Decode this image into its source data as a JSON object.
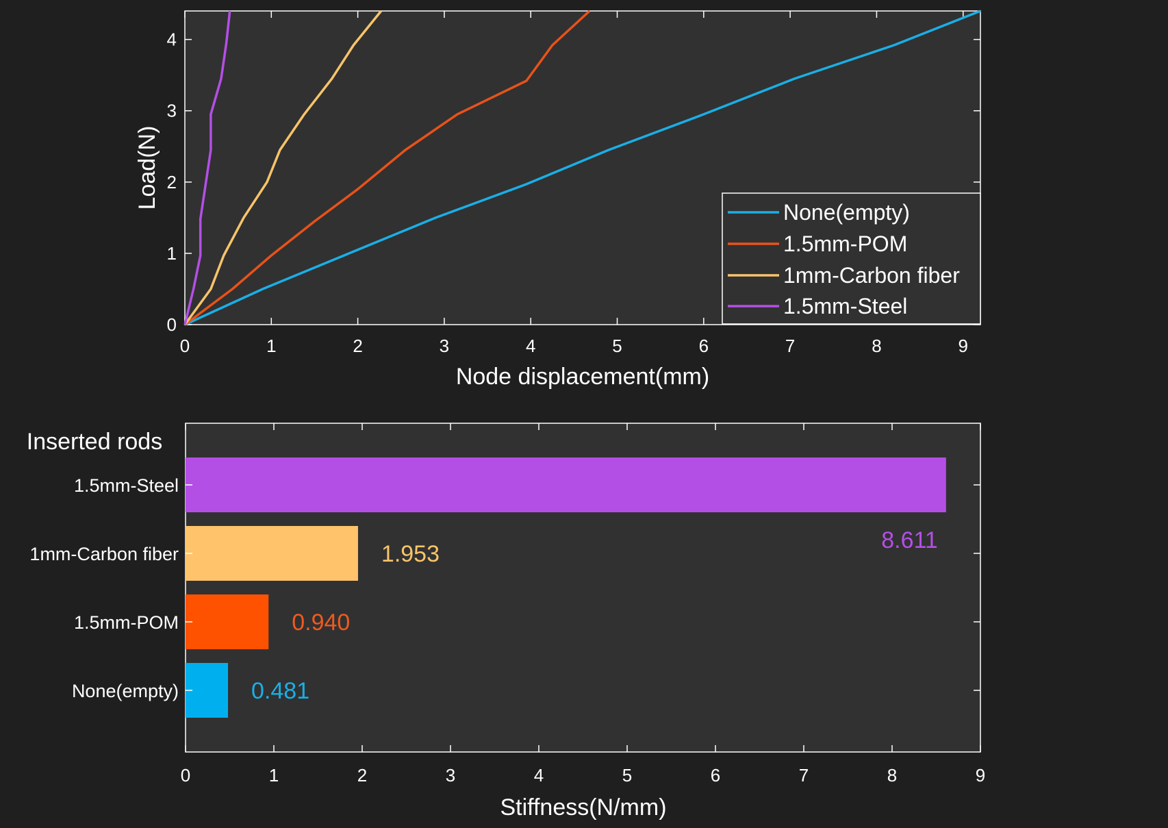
{
  "chart_data": [
    {
      "type": "line",
      "xlabel": "Node displacement(mm)",
      "ylabel": "Load(N)",
      "xlim": [
        0,
        9.2
      ],
      "ylim": [
        0,
        4.4
      ],
      "xticks": [
        "0",
        "1",
        "2",
        "3",
        "4",
        "5",
        "6",
        "7",
        "8",
        "9"
      ],
      "yticks": [
        "0",
        "1",
        "2",
        "3",
        "4"
      ],
      "legend_position": "bottom-right",
      "series": [
        {
          "name": "None(empty)",
          "color": "#1aafe6",
          "points": [
            [
              0,
              0
            ],
            [
              0.9,
              0.5
            ],
            [
              1.9,
              1.0
            ],
            [
              2.9,
              1.5
            ],
            [
              3.95,
              1.97
            ],
            [
              4.9,
              2.45
            ],
            [
              6.0,
              2.95
            ],
            [
              7.05,
              3.45
            ],
            [
              8.2,
              3.92
            ],
            [
              9.2,
              4.4
            ]
          ]
        },
        {
          "name": "1.5mm-POM",
          "color": "#e8521a",
          "points": [
            [
              0,
              0
            ],
            [
              0.55,
              0.5
            ],
            [
              1.0,
              0.97
            ],
            [
              1.5,
              1.45
            ],
            [
              2.0,
              1.9
            ],
            [
              2.55,
              2.45
            ],
            [
              3.15,
              2.95
            ],
            [
              3.95,
              3.42
            ],
            [
              4.25,
              3.92
            ],
            [
              4.68,
              4.4
            ]
          ]
        },
        {
          "name": "1mm-Carbon fiber",
          "color": "#f8c46a",
          "points": [
            [
              0,
              0
            ],
            [
              0.3,
              0.5
            ],
            [
              0.45,
              0.97
            ],
            [
              0.68,
              1.5
            ],
            [
              0.95,
              2.0
            ],
            [
              1.1,
              2.45
            ],
            [
              1.38,
              2.95
            ],
            [
              1.7,
              3.45
            ],
            [
              1.95,
              3.92
            ],
            [
              2.27,
              4.4
            ]
          ]
        },
        {
          "name": "1.5mm-Steel",
          "color": "#b44fe6",
          "points": [
            [
              0,
              0
            ],
            [
              0.1,
              0.5
            ],
            [
              0.18,
              0.97
            ],
            [
              0.18,
              1.48
            ],
            [
              0.3,
              2.45
            ],
            [
              0.3,
              2.95
            ],
            [
              0.42,
              3.45
            ],
            [
              0.48,
              3.95
            ],
            [
              0.52,
              4.4
            ]
          ]
        }
      ]
    },
    {
      "type": "bar",
      "orientation": "horizontal",
      "title": "Inserted rods",
      "xlabel": "Stiffness(N/mm)",
      "xlim": [
        0,
        9
      ],
      "xticks": [
        "0",
        "1",
        "2",
        "3",
        "4",
        "5",
        "6",
        "7",
        "8",
        "9"
      ],
      "categories": [
        "1.5mm-Steel",
        "1mm-Carbon fiber",
        "1.5mm-POM",
        "None(empty)"
      ],
      "values": [
        8.611,
        1.953,
        0.94,
        0.481
      ],
      "value_labels": [
        "8.611",
        "1.953",
        "0.940",
        "0.481"
      ],
      "colors": [
        "#b44fe6",
        "#fec36b",
        "#ff5200",
        "#00b0ee"
      ],
      "label_colors": [
        "#b44fe6",
        "#f8c46a",
        "#f05a1e",
        "#1aafe6"
      ]
    }
  ]
}
